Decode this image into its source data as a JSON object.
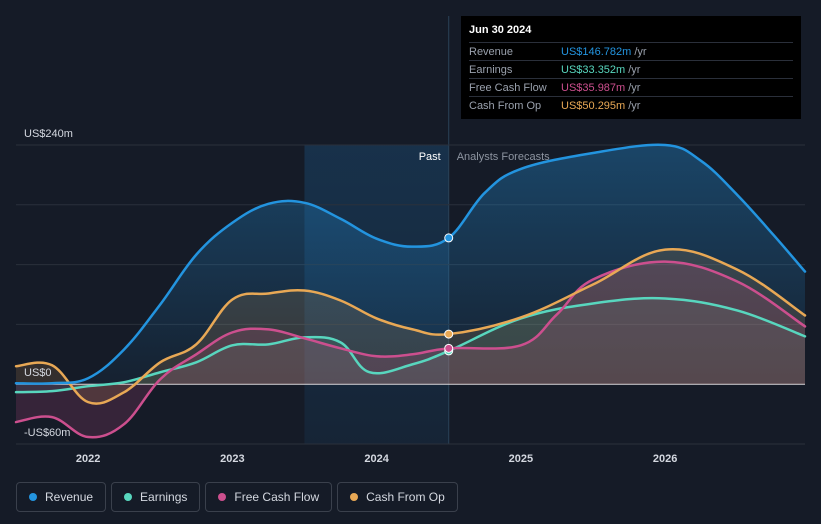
{
  "chart_data": {
    "type": "area",
    "x_domain": [
      2021.5,
      2026.97
    ],
    "ylim": [
      -60,
      240
    ],
    "y_tick_labels": [
      {
        "value": 240,
        "label": "US$240m"
      },
      {
        "value": 0,
        "label": "US$0"
      },
      {
        "value": -60,
        "label": "-US$60m"
      }
    ],
    "x_ticks": [
      {
        "value": 2022,
        "label": "2022"
      },
      {
        "value": 2023,
        "label": "2023"
      },
      {
        "value": 2024,
        "label": "2024"
      },
      {
        "value": 2025,
        "label": "2025"
      },
      {
        "value": 2026,
        "label": "2026"
      }
    ],
    "past_label": "Past",
    "forecast_label": "Analysts Forecasts",
    "past_shade_start": 2023.5,
    "divider_x": 2024.5,
    "series": [
      {
        "name": "Revenue",
        "color": "#2394df",
        "points": [
          [
            2021.5,
            1
          ],
          [
            2021.75,
            1
          ],
          [
            2022,
            6
          ],
          [
            2022.25,
            35
          ],
          [
            2022.5,
            80
          ],
          [
            2022.75,
            130
          ],
          [
            2023,
            162
          ],
          [
            2023.25,
            181
          ],
          [
            2023.5,
            182
          ],
          [
            2023.75,
            166
          ],
          [
            2024,
            146
          ],
          [
            2024.25,
            138
          ],
          [
            2024.5,
            146.8
          ],
          [
            2024.75,
            192
          ],
          [
            2025,
            216
          ],
          [
            2025.5,
            232
          ],
          [
            2026,
            240
          ],
          [
            2026.25,
            224
          ],
          [
            2026.5,
            190
          ],
          [
            2026.75,
            150
          ],
          [
            2026.97,
            113
          ]
        ]
      },
      {
        "name": "Earnings",
        "color": "#58d6be",
        "points": [
          [
            2021.5,
            -8
          ],
          [
            2021.75,
            -7
          ],
          [
            2022,
            -2
          ],
          [
            2022.25,
            2
          ],
          [
            2022.5,
            12
          ],
          [
            2022.75,
            22
          ],
          [
            2023,
            39
          ],
          [
            2023.25,
            40
          ],
          [
            2023.5,
            47
          ],
          [
            2023.75,
            42
          ],
          [
            2023.95,
            12
          ],
          [
            2024.25,
            20
          ],
          [
            2024.5,
            33.4
          ],
          [
            2025,
            66
          ],
          [
            2025.5,
            81
          ],
          [
            2026,
            86
          ],
          [
            2026.5,
            74
          ],
          [
            2026.97,
            48
          ]
        ]
      },
      {
        "name": "Free Cash Flow",
        "color": "#cc4f8e",
        "points": [
          [
            2021.5,
            -38
          ],
          [
            2021.75,
            -33
          ],
          [
            2022,
            -53
          ],
          [
            2022.25,
            -40
          ],
          [
            2022.5,
            5
          ],
          [
            2022.75,
            30
          ],
          [
            2023,
            52
          ],
          [
            2023.25,
            55
          ],
          [
            2023.5,
            46
          ],
          [
            2023.75,
            36
          ],
          [
            2024,
            28
          ],
          [
            2024.25,
            30
          ],
          [
            2024.5,
            36
          ],
          [
            2025,
            39
          ],
          [
            2025.25,
            70
          ],
          [
            2025.5,
            105
          ],
          [
            2026,
            123
          ],
          [
            2026.5,
            103
          ],
          [
            2026.97,
            58
          ]
        ]
      },
      {
        "name": "Cash From Op",
        "color": "#e8a855",
        "points": [
          [
            2021.5,
            18
          ],
          [
            2021.75,
            19
          ],
          [
            2022,
            -18
          ],
          [
            2022.25,
            -8
          ],
          [
            2022.5,
            22
          ],
          [
            2022.75,
            40
          ],
          [
            2023,
            85
          ],
          [
            2023.25,
            91
          ],
          [
            2023.5,
            94
          ],
          [
            2023.75,
            84
          ],
          [
            2024,
            66
          ],
          [
            2024.25,
            55
          ],
          [
            2024.5,
            50.3
          ],
          [
            2025,
            67
          ],
          [
            2025.5,
            100
          ],
          [
            2026,
            135
          ],
          [
            2026.5,
            115
          ],
          [
            2026.97,
            69
          ]
        ]
      }
    ]
  },
  "tooltip": {
    "date": "Jun 30 2024",
    "unit": "/yr",
    "rows": [
      {
        "label": "Revenue",
        "value": "US$146.782m",
        "color": "#2394df"
      },
      {
        "label": "Earnings",
        "value": "US$33.352m",
        "color": "#58d6be"
      },
      {
        "label": "Free Cash Flow",
        "value": "US$35.987m",
        "color": "#cc4f8e"
      },
      {
        "label": "Cash From Op",
        "value": "US$50.295m",
        "color": "#e8a855"
      }
    ]
  },
  "legend": [
    {
      "label": "Revenue",
      "color": "#2394df"
    },
    {
      "label": "Earnings",
      "color": "#58d6be"
    },
    {
      "label": "Free Cash Flow",
      "color": "#cc4f8e"
    },
    {
      "label": "Cash From Op",
      "color": "#e8a855"
    }
  ]
}
